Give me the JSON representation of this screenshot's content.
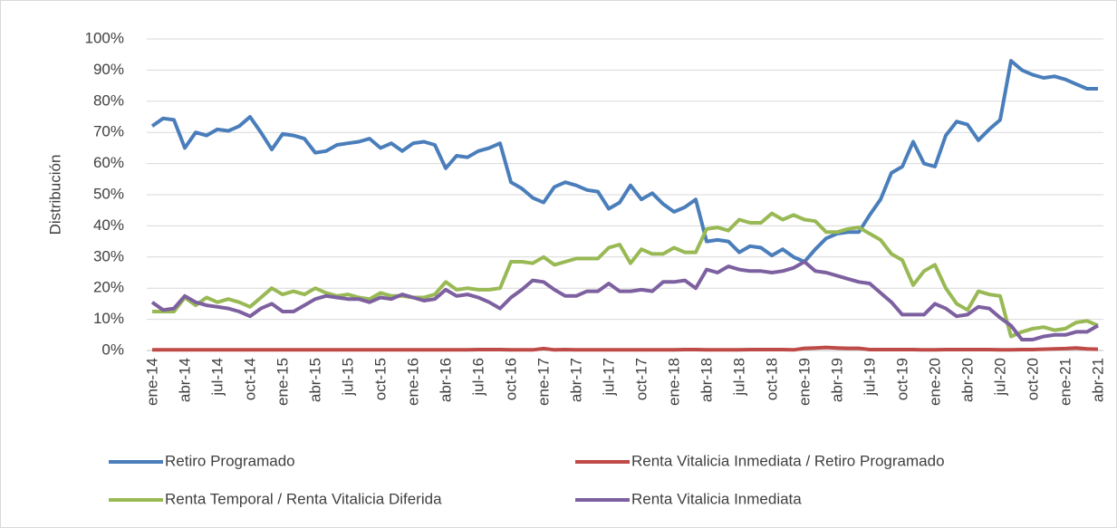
{
  "chart_data": {
    "type": "line",
    "y_label": "Distribución",
    "categories": [
      "ene-14",
      null,
      null,
      "abr-14",
      null,
      null,
      "jul-14",
      null,
      null,
      "oct-14",
      null,
      null,
      "ene-15",
      null,
      null,
      "abr-15",
      null,
      null,
      "jul-15",
      null,
      null,
      "oct-15",
      null,
      null,
      "ene-16",
      null,
      null,
      "abr-16",
      null,
      null,
      "jul-16",
      null,
      null,
      "oct-16",
      null,
      null,
      "ene-17",
      null,
      null,
      "abr-17",
      null,
      null,
      "jul-17",
      null,
      null,
      "oct-17",
      null,
      null,
      "ene-18",
      null,
      null,
      "abr-18",
      null,
      null,
      "jul-18",
      null,
      null,
      "oct-18",
      null,
      null,
      "ene-19",
      null,
      null,
      "abr-19",
      null,
      null,
      "jul-19",
      null,
      null,
      "oct-19",
      null,
      null,
      "ene-20",
      null,
      null,
      "abr-20",
      null,
      null,
      "jul-20",
      null,
      null,
      "oct-20",
      null,
      null,
      "ene-21",
      null,
      null,
      "abr-21"
    ],
    "series": [
      {
        "name": "Retiro Programado",
        "color": "#4a7ebb",
        "values": [
          72,
          74.5,
          74,
          65,
          70,
          69,
          71,
          70.5,
          72,
          75,
          70,
          64.5,
          69.5,
          69,
          68,
          63.5,
          64,
          66,
          66.5,
          67,
          68,
          65,
          66.5,
          64,
          66.5,
          67,
          66,
          58.5,
          62.5,
          62,
          64,
          65,
          66.5,
          54,
          52,
          49,
          47.5,
          52.5,
          54,
          53,
          51.5,
          51,
          45.5,
          47.5,
          53,
          48.5,
          50.5,
          47,
          44.5,
          46,
          48.5,
          35,
          35.5,
          35,
          31.5,
          33.5,
          33,
          30.5,
          32.5,
          30,
          28.5,
          32.5,
          36,
          37.5,
          38,
          38,
          43.5,
          48.5,
          57,
          59,
          67,
          60,
          59,
          69,
          73.5,
          72.5,
          67.5,
          71,
          74,
          93,
          90,
          88.5,
          87.5,
          88,
          87,
          85.5,
          84,
          84
        ]
      },
      {
        "name": "Renta Vitalicia Inmediata / Retiro Programado",
        "color": "#be4b48",
        "values": [
          0.2,
          0.2,
          0.2,
          0.2,
          0.2,
          0.2,
          0.2,
          0.2,
          0.2,
          0.2,
          0.2,
          0.2,
          0.2,
          0.2,
          0.2,
          0.2,
          0.2,
          0.2,
          0.2,
          0.2,
          0.2,
          0.2,
          0.2,
          0.2,
          0.2,
          0.2,
          0.2,
          0.2,
          0.2,
          0.2,
          0.3,
          0.3,
          0.3,
          0.2,
          0.2,
          0.2,
          0.6,
          0.2,
          0.3,
          0.2,
          0.2,
          0.2,
          0.2,
          0.2,
          0.2,
          0.2,
          0.2,
          0.2,
          0.2,
          0.3,
          0.3,
          0.2,
          0.2,
          0.2,
          0.2,
          0.3,
          0.3,
          0.3,
          0.3,
          0.2,
          0.7,
          0.8,
          1,
          0.8,
          0.7,
          0.7,
          0.3,
          0.3,
          0.3,
          0.3,
          0.3,
          0.2,
          0.2,
          0.3,
          0.3,
          0.3,
          0.3,
          0.3,
          0.2,
          0.2,
          0.3,
          0.3,
          0.4,
          0.5,
          0.6,
          0.8,
          0.5,
          0.4
        ]
      },
      {
        "name": "Renta Temporal / Renta Vitalicia Diferida",
        "color": "#98b954",
        "values": [
          12.5,
          12.5,
          12.5,
          17,
          14.5,
          17,
          15.5,
          16.5,
          15.5,
          14,
          17,
          20,
          18,
          19,
          18,
          20,
          18.5,
          17.5,
          18,
          17,
          16.5,
          18.5,
          17.5,
          17.5,
          17,
          17,
          18,
          22,
          19.5,
          20,
          19.5,
          19.5,
          20,
          28.5,
          28.5,
          28,
          30,
          27.5,
          28.5,
          29.5,
          29.5,
          29.5,
          33,
          34,
          28,
          32.5,
          31,
          31,
          33,
          31.5,
          31.5,
          39,
          39.5,
          38.5,
          42,
          41,
          41,
          44,
          42,
          43.5,
          42,
          41.5,
          38,
          38,
          39,
          39.5,
          37.5,
          35.5,
          31,
          29,
          21,
          25.5,
          27.5,
          20,
          15,
          13,
          19,
          18,
          17.5,
          4.5,
          6,
          7,
          7.5,
          6.5,
          7,
          9,
          9.5,
          8
        ]
      },
      {
        "name": "Renta Vitalicia Inmediata",
        "color": "#7d60a0",
        "values": [
          15.5,
          13,
          13.5,
          17.5,
          15.5,
          14.5,
          14,
          13.5,
          12.5,
          11,
          13.5,
          15,
          12.5,
          12.5,
          14.5,
          16.5,
          17.5,
          17,
          16.5,
          16.5,
          15.5,
          17,
          16.5,
          18,
          17,
          16,
          16.5,
          19.5,
          17.5,
          18,
          17,
          15.5,
          13.5,
          17,
          19.5,
          22.5,
          22,
          19.5,
          17.5,
          17.5,
          19,
          19,
          21.5,
          19,
          19,
          19.5,
          19,
          22,
          22,
          22.5,
          20,
          26,
          25,
          27,
          26,
          25.5,
          25.5,
          25,
          25.5,
          26.5,
          28.5,
          25.5,
          25,
          24,
          23,
          22,
          21.5,
          18.5,
          15.5,
          11.5,
          11.5,
          11.5,
          15,
          13.5,
          11,
          11.5,
          14,
          13.5,
          10.5,
          8,
          3.5,
          3.5,
          4.5,
          5,
          5,
          6,
          6,
          8
        ]
      }
    ],
    "ylim": [
      0,
      100
    ],
    "yticks": [
      {
        "value": 0,
        "label": "0%"
      },
      {
        "value": 10,
        "label": "10%"
      },
      {
        "value": 20,
        "label": "20%"
      },
      {
        "value": 30,
        "label": "30%"
      },
      {
        "value": 40,
        "label": "40%"
      },
      {
        "value": 50,
        "label": "50%"
      },
      {
        "value": 60,
        "label": "60%"
      },
      {
        "value": 70,
        "label": "70%"
      },
      {
        "value": 80,
        "label": "80%"
      },
      {
        "value": 90,
        "label": "90%"
      },
      {
        "value": 100,
        "label": "100%"
      }
    ],
    "grid": true,
    "legend": "bottom"
  }
}
